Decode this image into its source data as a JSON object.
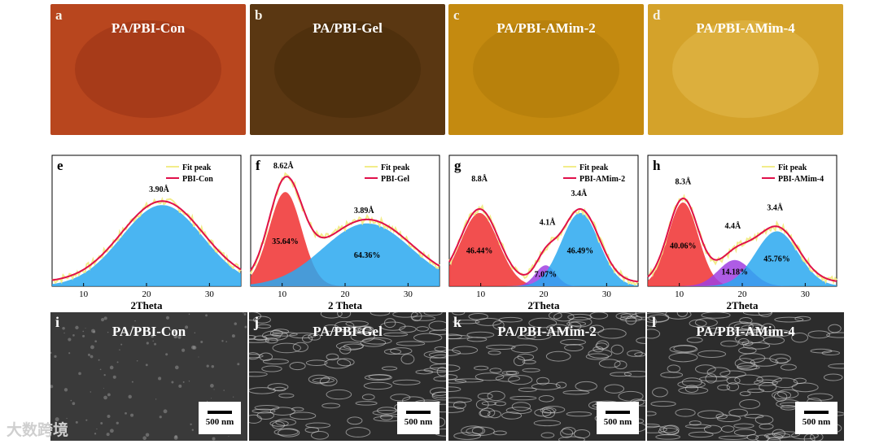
{
  "photos": [
    {
      "label": "a",
      "title": "PA/PBI-Con",
      "color": "#b8461e",
      "shade": "#8f2a12"
    },
    {
      "label": "b",
      "title": "PA/PBI-Gel",
      "color": "#5a3712",
      "shade": "#3f2508"
    },
    {
      "label": "c",
      "title": "PA/PBI-AMim-2",
      "color": "#c48a10",
      "shade": "#a87208"
    },
    {
      "label": "d",
      "title": "PA/PBI-AMim-4",
      "color": "#d4a22a",
      "shade": "#e8c45a"
    }
  ],
  "chart_data": [
    {
      "type": "area",
      "panel": "e",
      "xlabel": "2Theta",
      "xlim": [
        5,
        35
      ],
      "xticks": [
        10,
        20,
        30
      ],
      "legend": [
        "Fit peak",
        "PBI-Con"
      ],
      "peaks": [
        {
          "center": 22.5,
          "height": 0.62,
          "width": 6.5,
          "color": "#2aa8f0",
          "pct": ""
        }
      ],
      "annotations": [
        {
          "text": "3.90Å",
          "x": 22,
          "y": 0.72
        }
      ]
    },
    {
      "type": "area",
      "panel": "f",
      "xlabel": "2 Theta",
      "xlim": [
        5,
        35
      ],
      "xticks": [
        10,
        20,
        30
      ],
      "legend": [
        "Fit peak",
        "PBI-Gel"
      ],
      "peaks": [
        {
          "center": 10.5,
          "height": 0.72,
          "width": 2.6,
          "color": "#f03030",
          "pct": "35.64%"
        },
        {
          "center": 23.5,
          "height": 0.48,
          "width": 7,
          "color": "#2aa8f0",
          "pct": "64.36%"
        }
      ],
      "annotations": [
        {
          "text": "8.62Å",
          "x": 10.2,
          "y": 0.9
        },
        {
          "text": "3.89Å",
          "x": 23,
          "y": 0.56
        }
      ]
    },
    {
      "type": "area",
      "panel": "g",
      "xlabel": "2Theta",
      "xlim": [
        5,
        35
      ],
      "xticks": [
        10,
        20,
        30
      ],
      "legend": [
        "Fit peak",
        "PBI-AMim-2"
      ],
      "peaks": [
        {
          "center": 9.8,
          "height": 0.56,
          "width": 3,
          "color": "#f03030",
          "pct": "46.44%"
        },
        {
          "center": 20.3,
          "height": 0.16,
          "width": 1.6,
          "color": "#a040e0",
          "pct": "7.07%"
        },
        {
          "center": 25.8,
          "height": 0.56,
          "width": 3,
          "color": "#2aa8f0",
          "pct": "46.49%"
        }
      ],
      "annotations": [
        {
          "text": "8.8Å",
          "x": 9.8,
          "y": 0.8
        },
        {
          "text": "4.1Å",
          "x": 20.6,
          "y": 0.47
        },
        {
          "text": "3.4Å",
          "x": 25.6,
          "y": 0.69
        }
      ]
    },
    {
      "type": "area",
      "panel": "h",
      "xlabel": "2Theta",
      "xlim": [
        5,
        35
      ],
      "xticks": [
        10,
        20,
        30
      ],
      "legend": [
        "Fit peak",
        "PBI-AMim-4"
      ],
      "peaks": [
        {
          "center": 10.6,
          "height": 0.64,
          "width": 2.4,
          "color": "#f03030",
          "pct": "40.06%"
        },
        {
          "center": 18.8,
          "height": 0.2,
          "width": 2.6,
          "color": "#a040e0",
          "pct": "14.18%"
        },
        {
          "center": 25.5,
          "height": 0.42,
          "width": 3.4,
          "color": "#2aa8f0",
          "pct": "45.76%"
        }
      ],
      "annotations": [
        {
          "text": "8.3Å",
          "x": 10.6,
          "y": 0.78
        },
        {
          "text": "4.4Å",
          "x": 18.5,
          "y": 0.44
        },
        {
          "text": "3.4Å",
          "x": 25.2,
          "y": 0.58
        }
      ]
    }
  ],
  "sem": [
    {
      "label": "i",
      "title": "PA/PBI-Con",
      "scale": "500 nm"
    },
    {
      "label": "j",
      "title": "PA/PBI-Gel",
      "scale": "500 nm"
    },
    {
      "label": "k",
      "title": "PA/PBI-AMim-2",
      "scale": "500 nm"
    },
    {
      "label": "l",
      "title": "PA/PBI-AMim-4",
      "scale": "500 nm"
    }
  ],
  "watermark": "大数跨境"
}
